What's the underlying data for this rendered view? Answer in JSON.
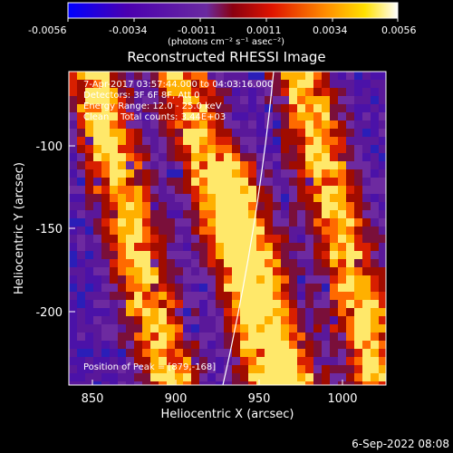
{
  "colorbar": {
    "tick_labels": [
      "-0.0056",
      "-0.0034",
      "-0.0011",
      "0.0011",
      "0.0034",
      "0.0056"
    ],
    "units_label": "(photons cm⁻² s⁻¹ asec⁻²)",
    "colors": [
      "#0000ff",
      "#4b00b0",
      "#6a2aa0",
      "#8a0010",
      "#e01400",
      "#ff8c00",
      "#ffe000",
      "#ffffff"
    ]
  },
  "plot": {
    "title": "Reconstructed RHESSI Image",
    "xlabel": "Heliocentric X (arcsec)",
    "ylabel": "Heliocentric Y (arcsec)",
    "x_ticks": [
      "850",
      "900",
      "950",
      "1000"
    ],
    "y_ticks": [
      "-100",
      "-150",
      "-200"
    ],
    "x_range": [
      836,
      1026
    ],
    "y_range": [
      -246,
      -57
    ]
  },
  "annotations": {
    "time_range": "7-Apr-2017 03:57:44.000 to 04:03:16.000",
    "detectors": "Detectors: 3F 6F 8F, Att 0",
    "energy": "Energy Range: 12.0 - 25.0 keV",
    "clean": "Clean    Total counts: 3.44E+03",
    "peak": "Position of Peak = [879,-168]"
  },
  "footer": {
    "date": "6-Sep-2022 08:08"
  }
}
